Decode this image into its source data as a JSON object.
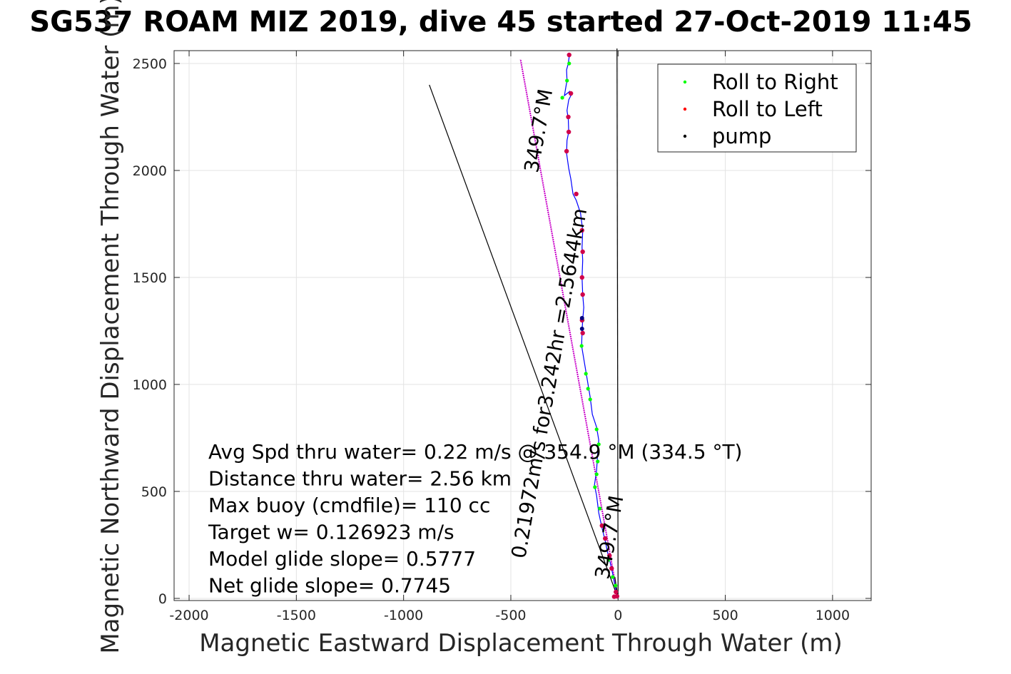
{
  "chart_data": {
    "type": "scatter",
    "title": "SG537 ROAM MIZ 2019, dive 45 started 27-Oct-2019 11:45",
    "xlabel": "Magnetic Eastward Displacement Through Water (m)",
    "ylabel": "Magnetic Northward Displacement Through Water (m)",
    "xlim": [
      -2070,
      1180
    ],
    "ylim": [
      -10,
      2560
    ],
    "xticks": [
      "-2000",
      "-1500",
      "-1000",
      "-500",
      "0",
      "500",
      "1000"
    ],
    "xtick_values": [
      -2000,
      -1500,
      -1000,
      -500,
      0,
      500,
      1000
    ],
    "yticks": [
      "0",
      "500",
      "1000",
      "1500",
      "2000",
      "2500"
    ],
    "ytick_values": [
      0,
      500,
      1000,
      1500,
      2000,
      2500
    ],
    "grid": true,
    "legend_position": "top-right",
    "legend": [
      {
        "label": "Roll to Right",
        "color": "#00ff00"
      },
      {
        "label": "Roll to Left",
        "color": "#ff0000"
      },
      {
        "label": "pump",
        "color": "#000000"
      }
    ],
    "track": {
      "color": "#0000ff",
      "points": [
        [
          0,
          0
        ],
        [
          -5,
          20
        ],
        [
          -15,
          60
        ],
        [
          -22,
          100
        ],
        [
          -35,
          160
        ],
        [
          -50,
          220
        ],
        [
          -60,
          270
        ],
        [
          -75,
          330
        ],
        [
          -90,
          400
        ],
        [
          -100,
          480
        ],
        [
          -110,
          530
        ],
        [
          -100,
          600
        ],
        [
          -95,
          680
        ],
        [
          -90,
          740
        ],
        [
          -100,
          800
        ],
        [
          -120,
          860
        ],
        [
          -130,
          940
        ],
        [
          -140,
          1000
        ],
        [
          -150,
          1060
        ],
        [
          -160,
          1120
        ],
        [
          -170,
          1180
        ],
        [
          -168,
          1250
        ],
        [
          -165,
          1300
        ],
        [
          -160,
          1360
        ],
        [
          -165,
          1420
        ],
        [
          -168,
          1500
        ],
        [
          -165,
          1580
        ],
        [
          -168,
          1640
        ],
        [
          -165,
          1720
        ],
        [
          -175,
          1800
        ],
        [
          -195,
          1860
        ],
        [
          -210,
          1890
        ],
        [
          -220,
          1960
        ],
        [
          -230,
          2010
        ],
        [
          -240,
          2080
        ],
        [
          -238,
          2140
        ],
        [
          -230,
          2180
        ],
        [
          -232,
          2240
        ],
        [
          -238,
          2280
        ],
        [
          -230,
          2330
        ],
        [
          -215,
          2360
        ],
        [
          -225,
          2370
        ],
        [
          -250,
          2350
        ],
        [
          -245,
          2380
        ],
        [
          -238,
          2420
        ],
        [
          -240,
          2470
        ],
        [
          -232,
          2500
        ],
        [
          -228,
          2530
        ],
        [
          -230,
          2545
        ]
      ]
    },
    "roll_right": [
      [
        -12,
        60
      ],
      [
        -25,
        100
      ],
      [
        -45,
        180
      ],
      [
        -85,
        420
      ],
      [
        -108,
        520
      ],
      [
        -100,
        580
      ],
      [
        -95,
        640
      ],
      [
        -90,
        720
      ],
      [
        -100,
        790
      ],
      [
        -130,
        930
      ],
      [
        -140,
        980
      ],
      [
        -150,
        1050
      ],
      [
        -170,
        1180
      ],
      [
        -165,
        1300
      ],
      [
        -238,
        2420
      ],
      [
        -228,
        2500
      ],
      [
        -260,
        2340
      ]
    ],
    "roll_left": [
      [
        -5,
        10
      ],
      [
        -10,
        30
      ],
      [
        -30,
        140
      ],
      [
        -40,
        200
      ],
      [
        -60,
        280
      ],
      [
        -75,
        340
      ],
      [
        -165,
        1240
      ],
      [
        -168,
        1300
      ],
      [
        -165,
        1420
      ],
      [
        -168,
        1500
      ],
      [
        -165,
        1620
      ],
      [
        -168,
        1720
      ],
      [
        -195,
        1890
      ],
      [
        -240,
        2090
      ],
      [
        -230,
        2180
      ],
      [
        -232,
        2250
      ],
      [
        -220,
        2360
      ],
      [
        -228,
        2540
      ],
      [
        -18,
        8
      ]
    ],
    "pump": [
      [
        -168,
        1260
      ],
      [
        -168,
        1310
      ]
    ],
    "lines": [
      {
        "name": "heading-line-left",
        "from": [
          0,
          0
        ],
        "to": [
          -880,
          2400
        ],
        "color": "#000000"
      },
      {
        "name": "drift-line",
        "from": [
          0,
          0
        ],
        "to": [
          -455,
          2520
        ],
        "color": "#c800c8"
      },
      {
        "name": "vertical-line",
        "from": [
          0,
          0
        ],
        "to": [
          -5,
          2570
        ],
        "color": "#000000"
      },
      {
        "name": "short-line",
        "from": [
          0,
          0
        ],
        "to": [
          -15,
          100
        ],
        "color": "#000000"
      }
    ],
    "rotated_labels": [
      {
        "text": "349.7°M",
        "x": -340,
        "y": 2180,
        "angle": -80
      },
      {
        "text": "0.21972m/s for3.242hr =2.5644km",
        "x": -290,
        "y": 1000,
        "angle": -80
      },
      {
        "text": "349.7°M",
        "x": -10,
        "y": 280,
        "angle": -80
      }
    ],
    "annotations": [
      "Avg Spd thru water=  0.22 m/s @ 354.9 °M (334.5 °T)",
      "Distance thru water=  2.56 km",
      "Max buoy (cmdfile)= 110 cc",
      "Target w= 0.126923 m/s",
      "Model glide slope= 0.5777",
      "Net glide slope= 0.7745"
    ]
  }
}
